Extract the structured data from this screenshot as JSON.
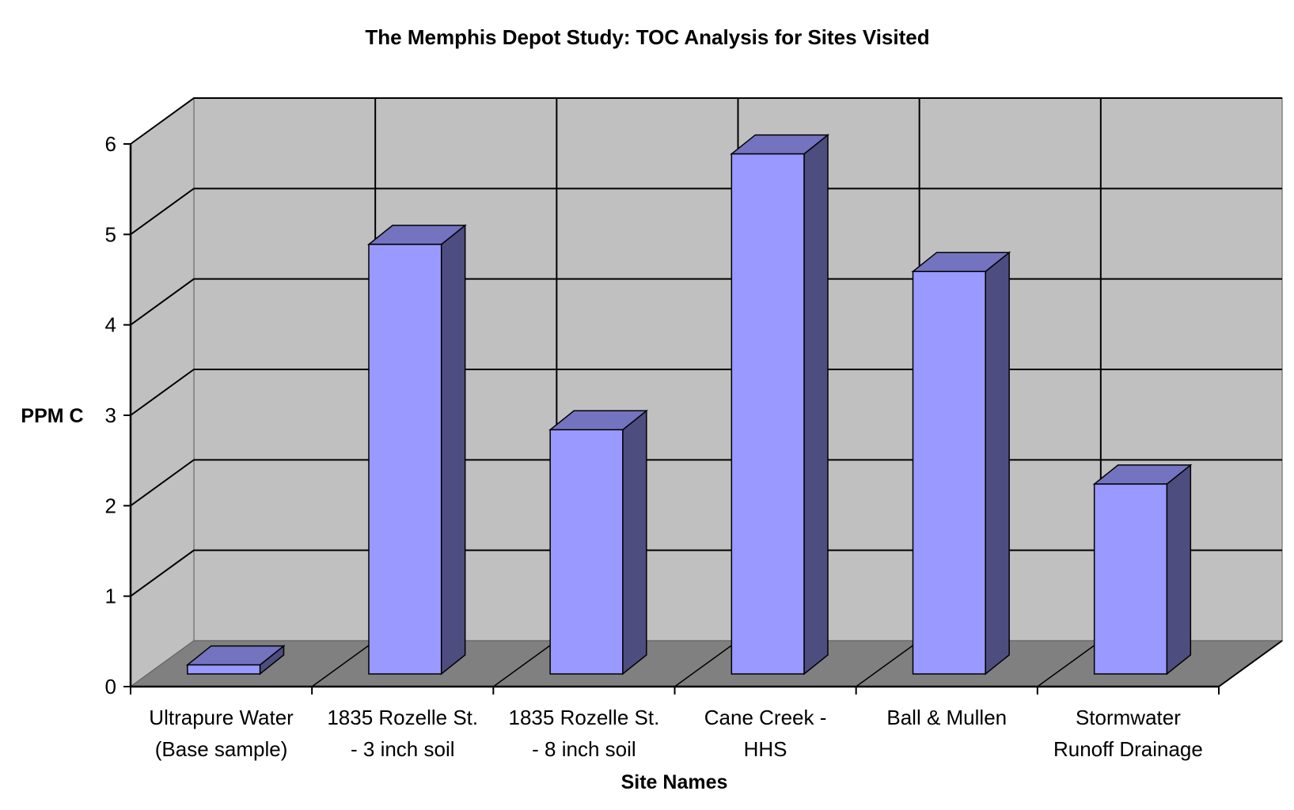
{
  "chart_data": {
    "type": "bar",
    "title": "The Memphis Depot Study:  TOC Analysis for Sites Visited",
    "xlabel": "Site Names",
    "ylabel": "PPM C",
    "ylim": [
      0,
      6
    ],
    "yticks": [
      "0",
      "1",
      "2",
      "3",
      "4",
      "5",
      "6"
    ],
    "categories": [
      [
        "Ultrapure Water",
        "(Base sample)"
      ],
      [
        "1835 Rozelle St.",
        "- 3 inch soil"
      ],
      [
        "1835 Rozelle St.",
        "- 8 inch soil"
      ],
      [
        "Cane Creek -",
        "HHS"
      ],
      [
        "Ball & Mullen",
        ""
      ],
      [
        "Stormwater",
        "Runoff Drainage"
      ]
    ],
    "values": [
      0.1,
      4.75,
      2.7,
      5.75,
      4.45,
      2.1
    ],
    "grid": true,
    "legend": "none",
    "colors": {
      "bar_front": "#9999ff",
      "bar_side": "#4d4d80",
      "bar_top": "#7373c0",
      "wall": "#c0c0c0",
      "floor": "#808080"
    }
  }
}
